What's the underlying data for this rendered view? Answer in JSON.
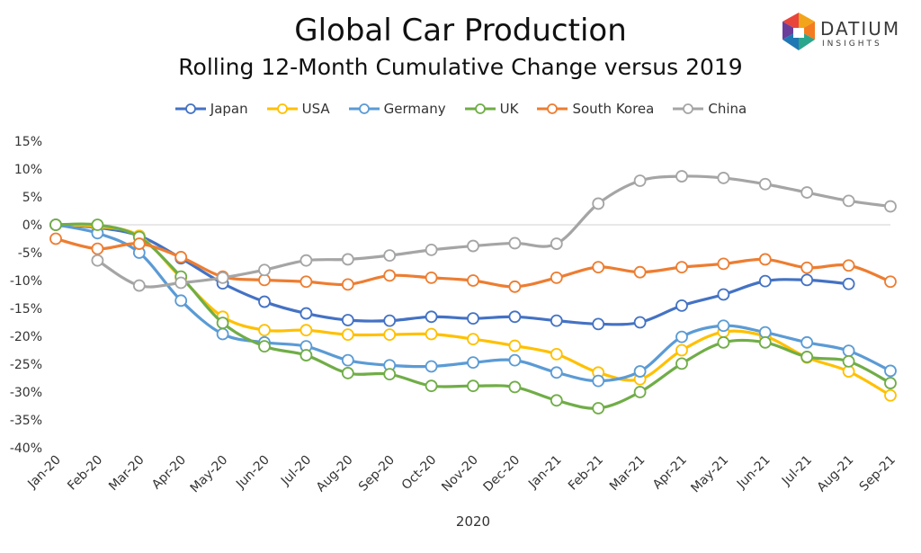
{
  "brand": {
    "word": "DATIUM",
    "sub": "INSIGHTS"
  },
  "chart_data": {
    "type": "line",
    "title": "Global Car Production",
    "subtitle": "Rolling 12-Month Cumulative Change versus 2019",
    "xlabel": "2020",
    "ylabel": "",
    "ylim": [
      -40,
      15
    ],
    "yticks": [
      "15%",
      "10%",
      "5%",
      "0%",
      "-5%",
      "-10%",
      "-15%",
      "-20%",
      "-25%",
      "-30%",
      "-35%",
      "-40%"
    ],
    "ytick_values": [
      15,
      10,
      5,
      0,
      -5,
      -10,
      -15,
      -20,
      -25,
      -30,
      -35,
      -40
    ],
    "categories": [
      "Jan-20",
      "Feb-20",
      "Mar-20",
      "Apr-20",
      "May-20",
      "Jun-20",
      "Jul-20",
      "Aug-20",
      "Sep-20",
      "Oct-20",
      "Nov-20",
      "Dec-20",
      "Jan-21",
      "Feb-21",
      "Mar-21",
      "Apr-21",
      "May-21",
      "Jun-21",
      "Jul-21",
      "Aug-21",
      "Sep-21"
    ],
    "grid": false,
    "legend": "top",
    "series": [
      {
        "name": "Japan",
        "color": "#4472C4",
        "values": [
          0,
          -0.5,
          -2,
          -6,
          -10.5,
          -13.8,
          -15.9,
          -17.1,
          -17.2,
          -16.5,
          -16.8,
          -16.5,
          -17.2,
          -17.8,
          -17.5,
          -14.5,
          -12.5,
          -10.1,
          -9.9,
          -10.6,
          null
        ]
      },
      {
        "name": "USA",
        "color": "#FFC000",
        "values": [
          0,
          -0.3,
          -2,
          -9.5,
          -16.5,
          -18.9,
          -18.9,
          -19.7,
          -19.7,
          -19.6,
          -20.5,
          -21.7,
          -23.2,
          -26.5,
          -27.7,
          -22.5,
          -19.2,
          -20.0,
          -23.8,
          -26.3,
          -30.6
        ]
      },
      {
        "name": "Germany",
        "color": "#5B9BD5",
        "values": [
          0,
          -1.5,
          -5,
          -13.6,
          -19.6,
          -21.1,
          -21.8,
          -24.3,
          -25.2,
          -25.4,
          -24.7,
          -24.3,
          -26.5,
          -28.0,
          -26.3,
          -20.1,
          -18.1,
          -19.3,
          -21.1,
          -22.6,
          -26.2
        ]
      },
      {
        "name": "UK",
        "color": "#70AD47",
        "values": [
          0,
          0,
          -2.2,
          -9.3,
          -17.6,
          -21.8,
          -23.4,
          -26.6,
          -26.8,
          -28.9,
          -28.9,
          -29.1,
          -31.5,
          -32.9,
          -30.0,
          -24.9,
          -21.1,
          -21.1,
          -23.7,
          -24.5,
          -28.4
        ]
      },
      {
        "name": "South Korea",
        "color": "#ED7D31",
        "values": [
          -2.5,
          -4.3,
          -3.4,
          -5.8,
          -9.3,
          -9.9,
          -10.2,
          -10.7,
          -9.1,
          -9.5,
          -10.0,
          -11.1,
          -9.5,
          -7.6,
          -8.5,
          -7.6,
          -7.0,
          -6.2,
          -7.7,
          -7.3,
          -10.2
        ]
      },
      {
        "name": "China",
        "color": "#A5A5A5",
        "values": [
          null,
          -6.4,
          -10.9,
          -10.4,
          -9.5,
          -8.1,
          -6.4,
          -6.2,
          -5.5,
          -4.5,
          -3.8,
          -3.3,
          -3.4,
          3.8,
          7.9,
          8.7,
          8.4,
          7.3,
          5.8,
          4.3,
          3.3
        ]
      }
    ]
  }
}
